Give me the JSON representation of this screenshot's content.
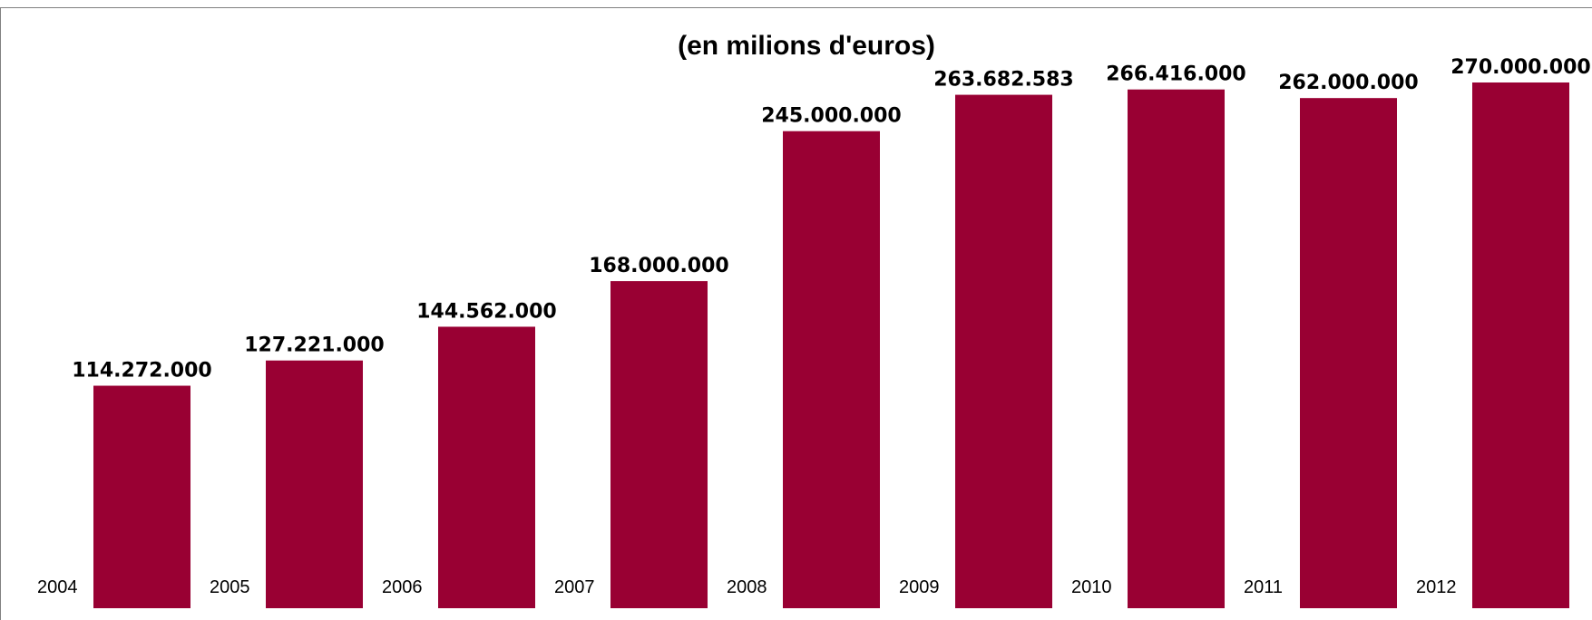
{
  "chart_data": {
    "type": "bar",
    "title": "(en milions d'euros)",
    "xlabel": "",
    "ylabel": "",
    "categories": [
      "2004",
      "2005",
      "2006",
      "2007",
      "2008",
      "2009",
      "2010",
      "2011",
      "2012"
    ],
    "values": [
      114272000,
      127221000,
      144562000,
      168000000,
      245000000,
      263682583,
      266416000,
      262000000,
      270000000
    ],
    "value_labels": [
      "114.272.000",
      "127.221.000",
      "144.562.000",
      "168.000.000",
      "245.000.000",
      "263.682.583",
      "266.416.000",
      "262.000.000",
      "270.000.000"
    ],
    "ylim": [
      0,
      270000000
    ],
    "grid": false,
    "legend": "none",
    "axes_visible": false,
    "bar_color": "#990033",
    "frame_color": "#808080"
  }
}
